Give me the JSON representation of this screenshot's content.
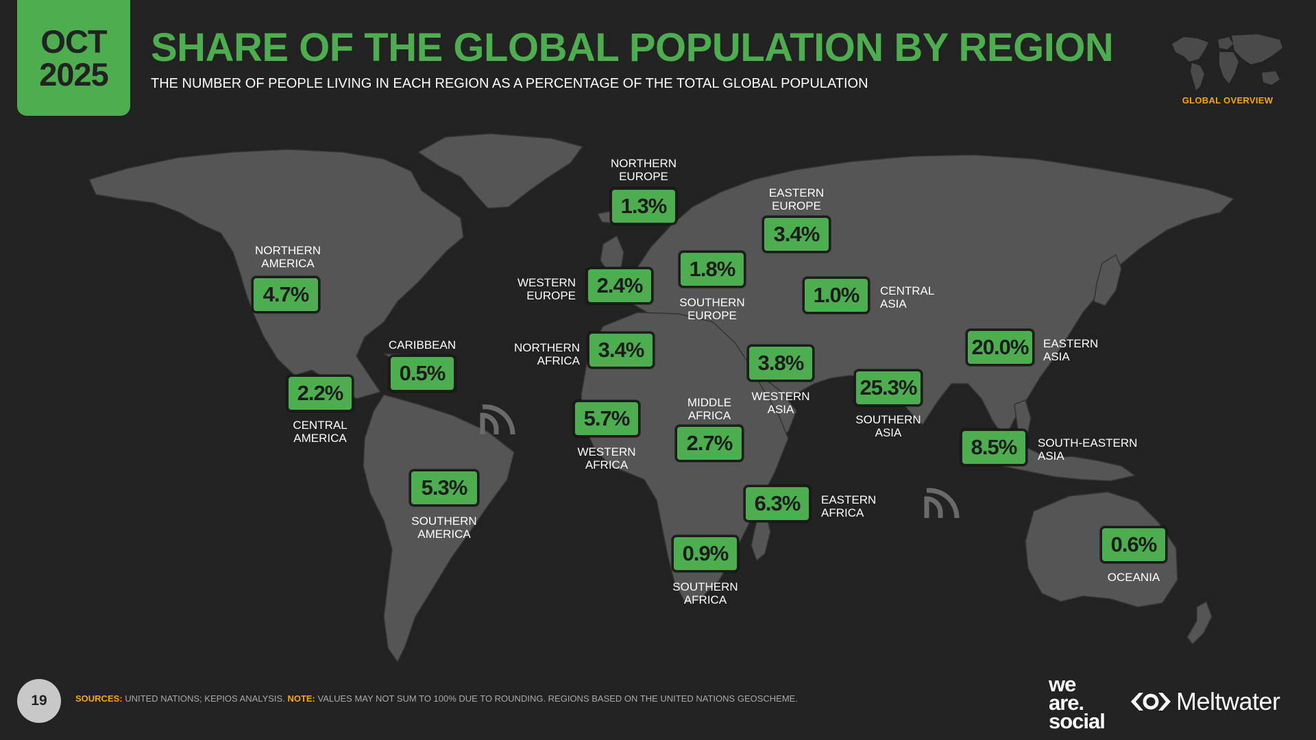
{
  "header": {
    "month": "OCT",
    "year": "2025",
    "title": "SHARE OF THE GLOBAL POPULATION BY REGION",
    "subtitle": "THE NUMBER OF PEOPLE LIVING IN EACH REGION AS A PERCENTAGE OF THE TOTAL GLOBAL POPULATION",
    "section": "GLOBAL OVERVIEW"
  },
  "colors": {
    "accent": "#4cae4f",
    "highlight": "#f7a800",
    "background": "#222222",
    "land": "#555555"
  },
  "regions": [
    {
      "name_lines": [
        "NORTHERN",
        "AMERICA"
      ],
      "value": "4.7%"
    },
    {
      "name_lines": [
        "CENTRAL",
        "AMERICA"
      ],
      "value": "2.2%"
    },
    {
      "name_lines": [
        "CARIBBEAN"
      ],
      "value": "0.5%"
    },
    {
      "name_lines": [
        "SOUTHERN",
        "AMERICA"
      ],
      "value": "5.3%"
    },
    {
      "name_lines": [
        "NORTHERN",
        "EUROPE"
      ],
      "value": "1.3%"
    },
    {
      "name_lines": [
        "WESTERN",
        "EUROPE"
      ],
      "value": "2.4%"
    },
    {
      "name_lines": [
        "SOUTHERN",
        "EUROPE"
      ],
      "value": "1.8%"
    },
    {
      "name_lines": [
        "EASTERN",
        "EUROPE"
      ],
      "value": "3.4%"
    },
    {
      "name_lines": [
        "CENTRAL",
        "ASIA"
      ],
      "value": "1.0%"
    },
    {
      "name_lines": [
        "NORTHERN",
        "AFRICA"
      ],
      "value": "3.4%"
    },
    {
      "name_lines": [
        "WESTERN",
        "AFRICA"
      ],
      "value": "5.7%"
    },
    {
      "name_lines": [
        "MIDDLE",
        "AFRICA"
      ],
      "value": "2.7%"
    },
    {
      "name_lines": [
        "EASTERN",
        "AFRICA"
      ],
      "value": "6.3%"
    },
    {
      "name_lines": [
        "SOUTHERN",
        "AFRICA"
      ],
      "value": "0.9%"
    },
    {
      "name_lines": [
        "WESTERN",
        "ASIA"
      ],
      "value": "3.8%"
    },
    {
      "name_lines": [
        "SOUTHERN",
        "ASIA"
      ],
      "value": "25.3%"
    },
    {
      "name_lines": [
        "EASTERN",
        "ASIA"
      ],
      "value": "20.0%"
    },
    {
      "name_lines": [
        "SOUTH-EASTERN",
        "ASIA"
      ],
      "value": "8.5%"
    },
    {
      "name_lines": [
        "OCEANIA"
      ],
      "value": "0.6%"
    }
  ],
  "footer": {
    "page_number": "19",
    "sources_key": "SOURCES:",
    "sources_text": " UNITED NATIONS; KEPIOS ANALYSIS. ",
    "note_key": "NOTE:",
    "note_text": " VALUES MAY NOT SUM TO 100% DUE TO ROUNDING. REGIONS BASED ON THE UNITED NATIONS GEOSCHEME."
  },
  "logos": {
    "wearesocial": [
      "we",
      "are.",
      "social"
    ],
    "meltwater": "Meltwater"
  },
  "icons": [
    "datareportal-watermark-icon",
    "meltwater-logo-icon",
    "world-map-icon"
  ]
}
